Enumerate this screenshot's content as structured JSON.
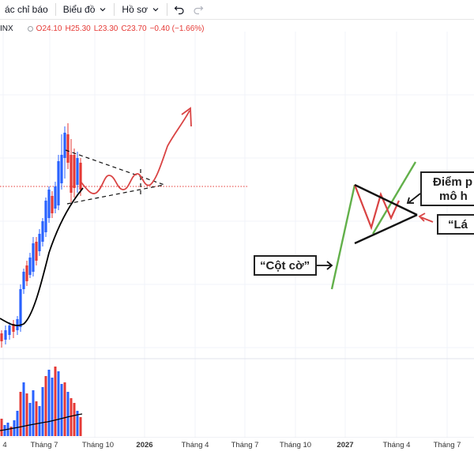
{
  "toolbar": {
    "indicators_label": "ác chỉ báo",
    "chart_type_label": "Biểu đồ",
    "profile_label": "Hồ sơ"
  },
  "symbol": {
    "ticker": "INX",
    "open": "O24.10",
    "high": "H25.30",
    "low": "L23.30",
    "close": "C23.70",
    "change": "−0.40 (−1.66%)"
  },
  "annotations": {
    "breakout_point_line1": "Điểm p",
    "breakout_point_line2": "mô h",
    "pole_label": "“Cột cờ”",
    "flag_label": "“Lá"
  },
  "x_axis": {
    "labels": [
      "4",
      "Tháng 7",
      "Tháng 10",
      "2026",
      "Tháng 4",
      "Tháng 7",
      "Tháng 10",
      "2027",
      "Tháng 4",
      "Tháng 7"
    ]
  },
  "colors": {
    "up": "#2962ff",
    "down": "#e53935",
    "ma_line": "#000000",
    "forecast": "#d94343",
    "flag_pole": "#62b04a",
    "flag_zigzag": "#d94343"
  }
}
